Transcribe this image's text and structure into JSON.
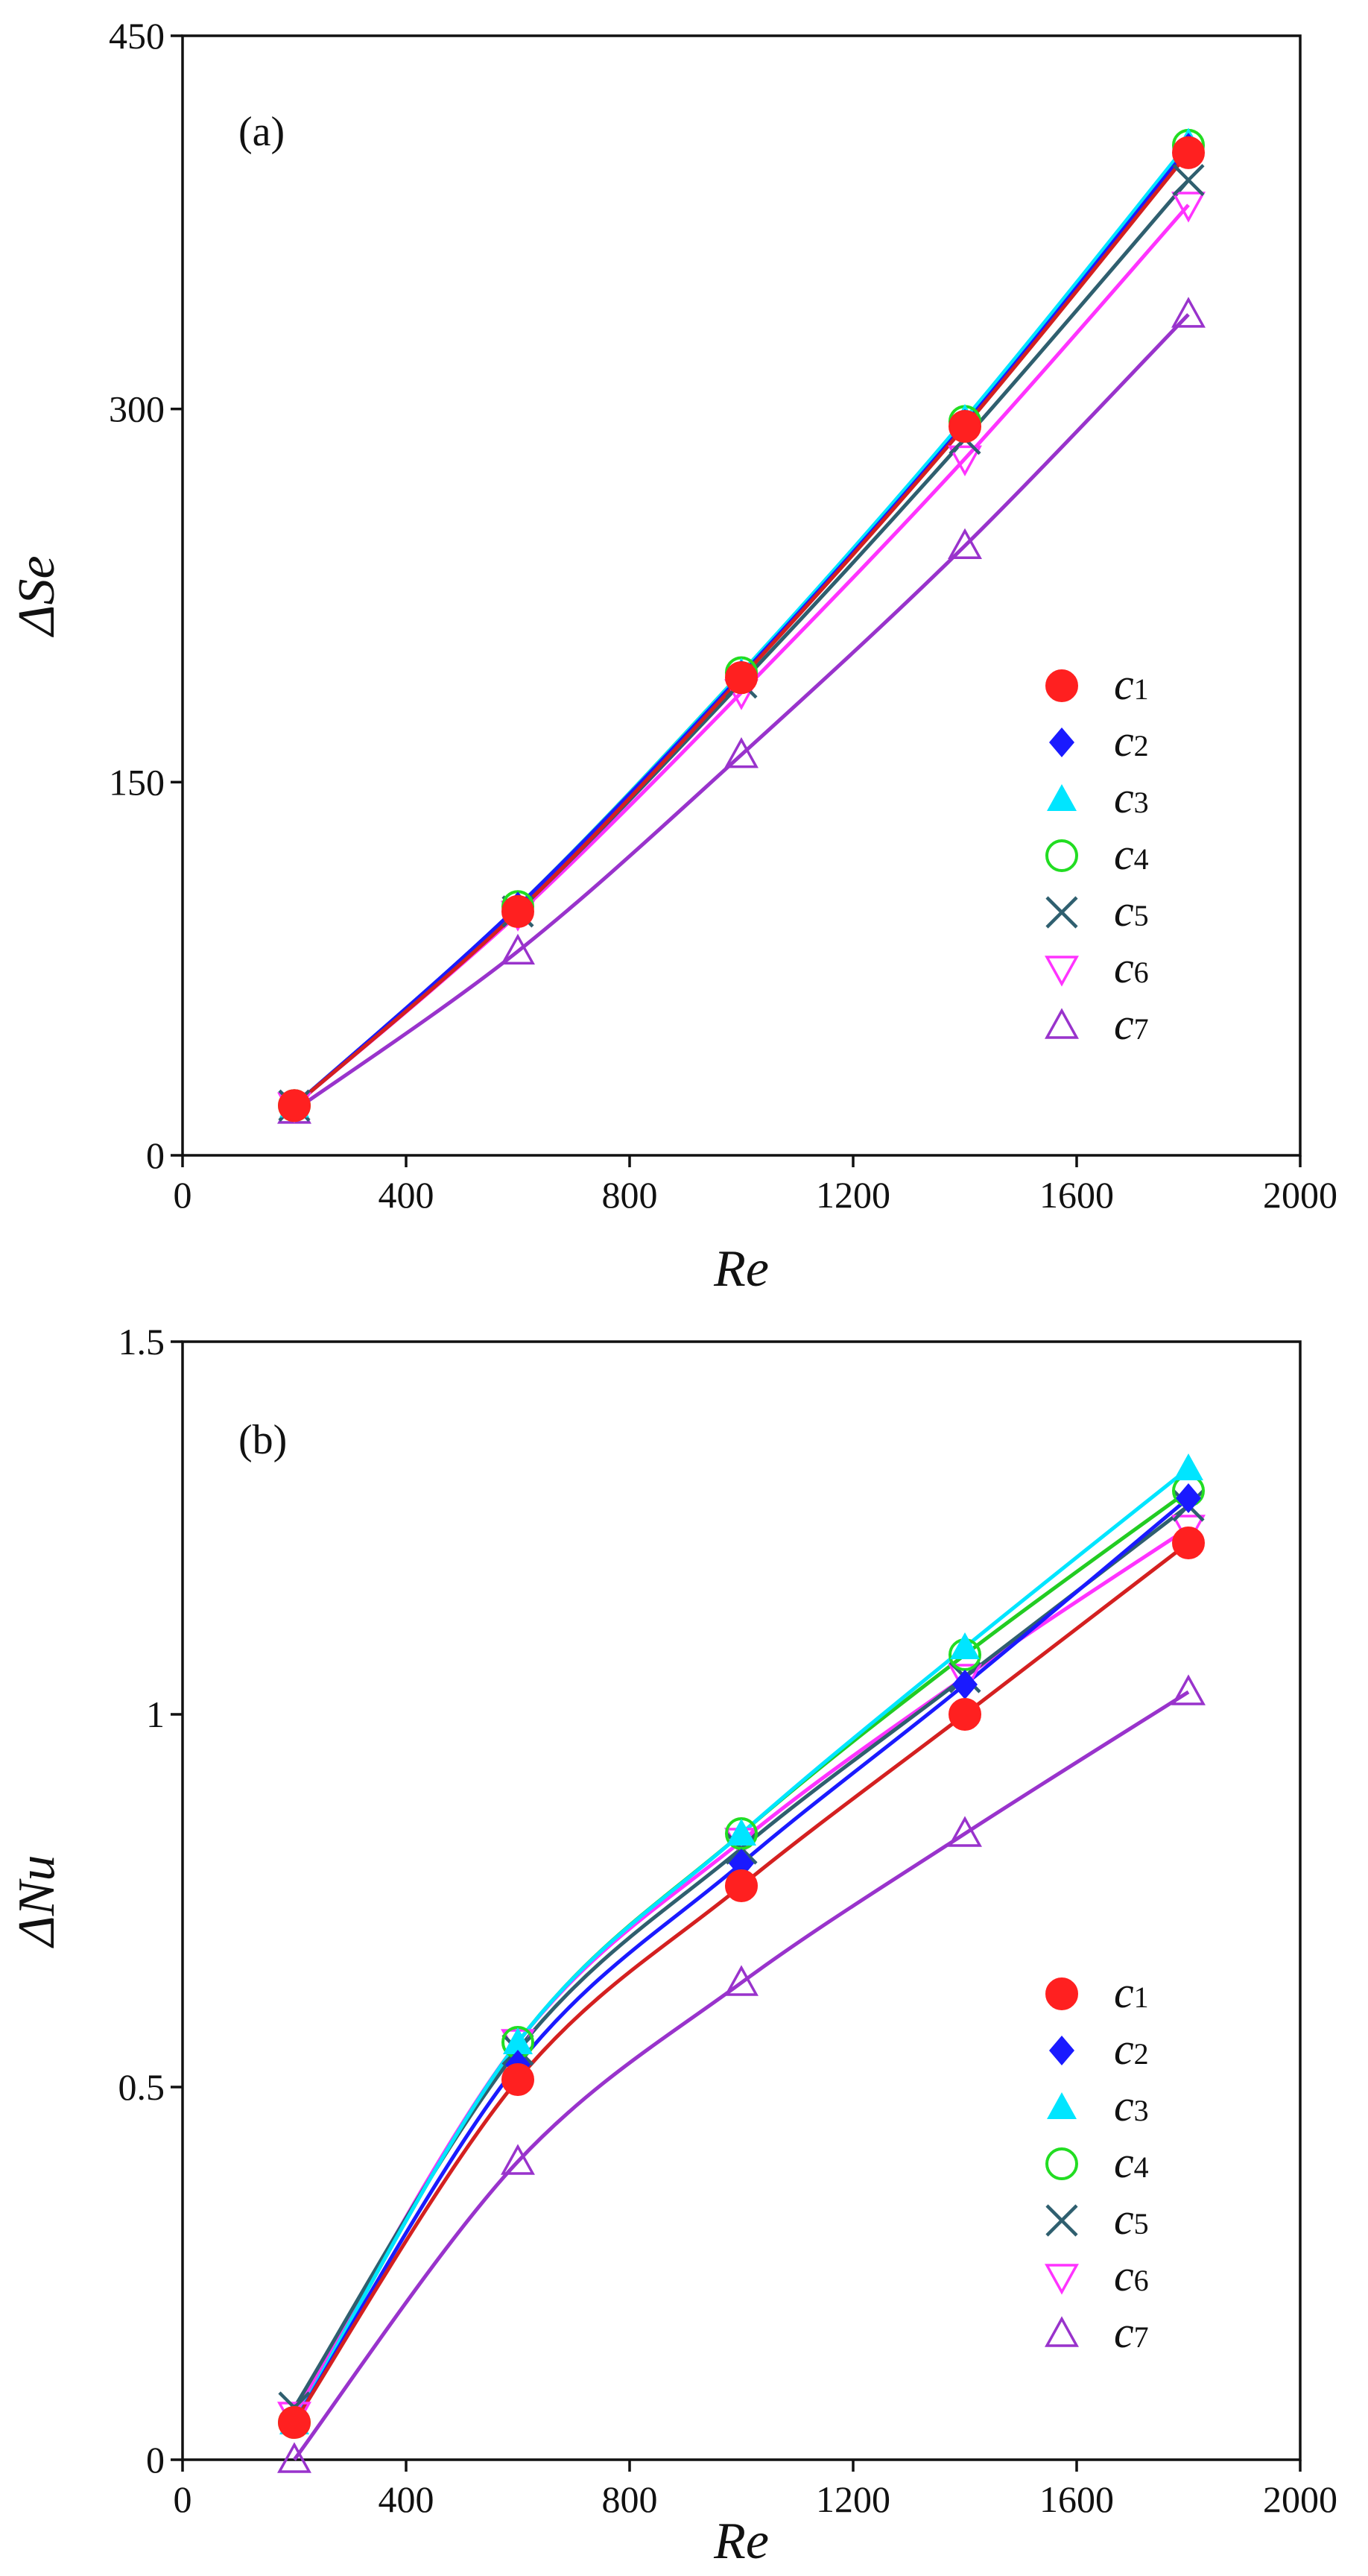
{
  "chart_data": [
    {
      "type": "line",
      "panel_label": "(a)",
      "xlabel": "Re",
      "ylabel": "ΔSe",
      "xlim": [
        0,
        2000
      ],
      "ylim": [
        0,
        450
      ],
      "xticks": [
        0,
        400,
        800,
        1200,
        1600,
        2000
      ],
      "yticks": [
        0,
        150,
        300,
        450
      ],
      "x": [
        200,
        600,
        1000,
        1400,
        1800
      ],
      "legend_position": "right-middle",
      "series": [
        {
          "name": "c1",
          "values": [
            20,
            98,
            192,
            293,
            403
          ],
          "color": "#ff2020",
          "marker": "filled-circle",
          "line_color": "#d42020"
        },
        {
          "name": "c2",
          "values": [
            20,
            100,
            193,
            294,
            405
          ],
          "color": "#1a1aff",
          "marker": "filled-diamond",
          "line_color": "#1a1aff"
        },
        {
          "name": "c3",
          "values": [
            20,
            100,
            194,
            296,
            407
          ],
          "color": "#00e5ff",
          "marker": "filled-triangle-up",
          "line_color": "#00e5ff"
        },
        {
          "name": "c4",
          "values": [
            20,
            100,
            194,
            295,
            406
          ],
          "color": "#22dd22",
          "marker": "open-circle",
          "line_color": "#22cc22"
        },
        {
          "name": "c5",
          "values": [
            20,
            98,
            190,
            288,
            392
          ],
          "color": "#2f5f6f",
          "marker": "x",
          "line_color": "#2f5f6f"
        },
        {
          "name": "c6",
          "values": [
            20,
            97,
            186,
            280,
            382
          ],
          "color": "#ff33ff",
          "marker": "open-triangle-down",
          "line_color": "#ff33ff"
        },
        {
          "name": "c7",
          "values": [
            18,
            82,
            161,
            245,
            338
          ],
          "color": "#9933cc",
          "marker": "open-triangle-up",
          "line_color": "#9933cc"
        }
      ]
    },
    {
      "type": "line",
      "panel_label": "(b)",
      "xlabel": "Re",
      "ylabel": "ΔNu",
      "xlim": [
        0,
        2000
      ],
      "ylim": [
        0,
        1.5
      ],
      "xticks": [
        0,
        400,
        800,
        1200,
        1600,
        2000
      ],
      "yticks": [
        0,
        0.5,
        1,
        1.5
      ],
      "ytick_labels": [
        "0",
        "0.5",
        "1",
        "1.5"
      ],
      "x": [
        200,
        600,
        1000,
        1400,
        1800
      ],
      "legend_position": "right-lower",
      "series": [
        {
          "name": "c1",
          "values": [
            0.05,
            0.51,
            0.77,
            1.0,
            1.23
          ],
          "color": "#ff2020",
          "marker": "filled-circle",
          "line_color": "#d42020"
        },
        {
          "name": "c2",
          "values": [
            0.05,
            0.53,
            0.8,
            1.04,
            1.29
          ],
          "color": "#1a1aff",
          "marker": "filled-diamond",
          "line_color": "#1a1aff"
        },
        {
          "name": "c3",
          "values": [
            0.05,
            0.56,
            0.84,
            1.09,
            1.33
          ],
          "color": "#00e5ff",
          "marker": "filled-triangle-up",
          "line_color": "#00e5ff"
        },
        {
          "name": "c4",
          "values": [
            0.05,
            0.56,
            0.84,
            1.08,
            1.3
          ],
          "color": "#22dd22",
          "marker": "open-circle",
          "line_color": "#22cc22"
        },
        {
          "name": "c5",
          "values": [
            0.07,
            0.55,
            0.82,
            1.05,
            1.28
          ],
          "color": "#2f5f6f",
          "marker": "x",
          "line_color": "#2f5f6f"
        },
        {
          "name": "c6",
          "values": [
            0.06,
            0.56,
            0.83,
            1.05,
            1.25
          ],
          "color": "#ff33ff",
          "marker": "open-triangle-down",
          "line_color": "#ff33ff"
        },
        {
          "name": "c7",
          "values": [
            0.0,
            0.4,
            0.64,
            0.84,
            1.03
          ],
          "color": "#9933cc",
          "marker": "open-triangle-up",
          "line_color": "#9933cc"
        }
      ]
    }
  ]
}
